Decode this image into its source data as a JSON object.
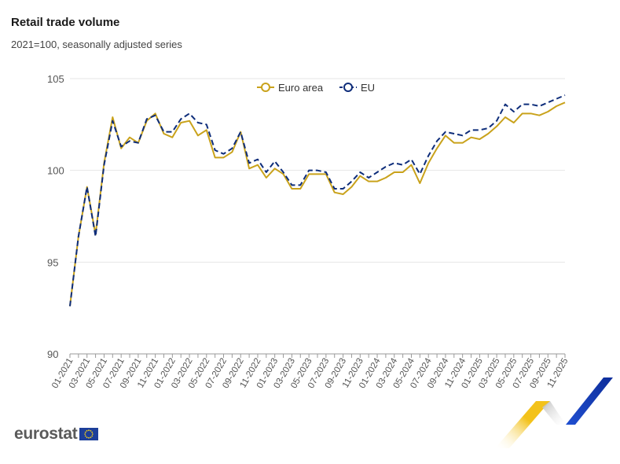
{
  "colors": {
    "euro_area": "#C9A21B",
    "eu": "#0E2D7A",
    "grid": "#e6e6e6",
    "axis_text": "#555555"
  },
  "branding": {
    "logo_text": "eurostat",
    "logo_icon": "eu-flag-icon",
    "corner_graphic": "eurostat-arrow-graphic"
  },
  "chart_data": {
    "type": "line",
    "title": "Retail trade volume",
    "subtitle": "2021=100, seasonally adjusted series",
    "xlabel": "",
    "ylabel": "",
    "ylim": [
      90,
      105
    ],
    "yticks": [
      90,
      95,
      100,
      105
    ],
    "grid": true,
    "legend_position": "top",
    "x": [
      "01-2021",
      "02-2021",
      "03-2021",
      "04-2021",
      "05-2021",
      "06-2021",
      "07-2021",
      "08-2021",
      "09-2021",
      "10-2021",
      "11-2021",
      "12-2021",
      "01-2022",
      "02-2022",
      "03-2022",
      "04-2022",
      "05-2022",
      "06-2022",
      "07-2022",
      "08-2022",
      "09-2022",
      "10-2022",
      "11-2022",
      "12-2022",
      "01-2023",
      "02-2023",
      "03-2023",
      "04-2023",
      "05-2023",
      "06-2023",
      "07-2023",
      "08-2023",
      "09-2023",
      "10-2023",
      "11-2023",
      "12-2023",
      "01-2024",
      "02-2024",
      "03-2024",
      "04-2024",
      "05-2024",
      "06-2024",
      "07-2024",
      "08-2024",
      "09-2024",
      "10-2024",
      "11-2024",
      "12-2024",
      "01-2025",
      "02-2025",
      "03-2025",
      "04-2025",
      "05-2025",
      "06-2025",
      "07-2025",
      "08-2025",
      "09-2025",
      "10-2025",
      "11-2025"
    ],
    "xtick_labels": [
      "01-2021",
      "03-2021",
      "05-2021",
      "07-2021",
      "09-2021",
      "11-2021",
      "01-2022",
      "03-2022",
      "05-2022",
      "07-2022",
      "09-2022",
      "11-2022",
      "01-2023",
      "03-2023",
      "05-2023",
      "07-2023",
      "09-2023",
      "11-2023",
      "01-2024",
      "03-2024",
      "05-2024",
      "07-2024",
      "09-2024",
      "11-2024",
      "01-2025",
      "03-2025",
      "05-2025",
      "07-2025",
      "09-2025",
      "11-2025"
    ],
    "series": [
      {
        "name": "Euro area",
        "style": "solid",
        "values": [
          92.6,
          96.4,
          99.1,
          96.5,
          100.4,
          102.9,
          101.2,
          101.8,
          101.5,
          102.7,
          103.1,
          102.0,
          101.8,
          102.6,
          102.7,
          101.9,
          102.2,
          100.7,
          100.7,
          101.0,
          102.1,
          100.1,
          100.3,
          99.6,
          100.1,
          99.8,
          99.0,
          99.0,
          99.8,
          99.8,
          99.8,
          98.8,
          98.7,
          99.1,
          99.7,
          99.4,
          99.4,
          99.6,
          99.9,
          99.9,
          100.3,
          99.3,
          100.4,
          101.2,
          101.9,
          101.5,
          101.5,
          101.8,
          101.7,
          102.0,
          102.4,
          102.9,
          102.6,
          103.1,
          103.1,
          103.0,
          103.2,
          103.5,
          103.7
        ]
      },
      {
        "name": "EU",
        "style": "dashed",
        "values": [
          92.6,
          96.4,
          99.1,
          96.4,
          100.3,
          102.7,
          101.3,
          101.6,
          101.5,
          102.8,
          103.0,
          102.1,
          102.1,
          102.8,
          103.1,
          102.6,
          102.5,
          101.1,
          100.9,
          101.2,
          102.1,
          100.4,
          100.6,
          99.9,
          100.5,
          99.9,
          99.2,
          99.2,
          100.0,
          100.0,
          99.9,
          99.0,
          99.0,
          99.4,
          99.9,
          99.6,
          99.9,
          100.2,
          100.4,
          100.3,
          100.6,
          99.8,
          100.8,
          101.6,
          102.1,
          102.0,
          101.9,
          102.2,
          102.2,
          102.3,
          102.7,
          103.6,
          103.2,
          103.6,
          103.6,
          103.5,
          103.7,
          103.9,
          104.1
        ]
      }
    ]
  }
}
